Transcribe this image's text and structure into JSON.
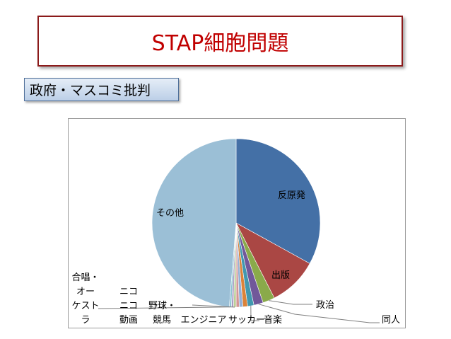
{
  "slide": {
    "title": "STAP細胞問題",
    "subtitle": "政府・マスコミ批判"
  },
  "chart_data": {
    "type": "pie",
    "title": "",
    "legend": "none",
    "slices": [
      {
        "label": "反原発",
        "value": 33.0,
        "color": "#4470a6"
      },
      {
        "label": "出版",
        "value": 9.5,
        "color": "#aa4744"
      },
      {
        "label": "政治",
        "value": 2.3,
        "color": "#8aaa4a"
      },
      {
        "label": "同人",
        "value": 1.8,
        "color": "#71589a"
      },
      {
        "label": "音楽",
        "value": 1.2,
        "color": "#4198af"
      },
      {
        "label": "サッカー",
        "value": 0.9,
        "color": "#db8339"
      },
      {
        "label": "エンジニア",
        "value": 0.7,
        "color": "#94b0d5"
      },
      {
        "label": "競馬",
        "value": 0.6,
        "color": "#d39795"
      },
      {
        "label": "野球・",
        "value": 0.5,
        "color": "#bccf96"
      },
      {
        "label": "ニコニコ動画",
        "value": 0.4,
        "color": "#aa9bc1"
      },
      {
        "label": "合唱・オーケストラ",
        "value": 0.4,
        "color": "#8ec5d4"
      },
      {
        "label": "その他",
        "value": 48.7,
        "color": "#9bbfd6"
      }
    ]
  }
}
